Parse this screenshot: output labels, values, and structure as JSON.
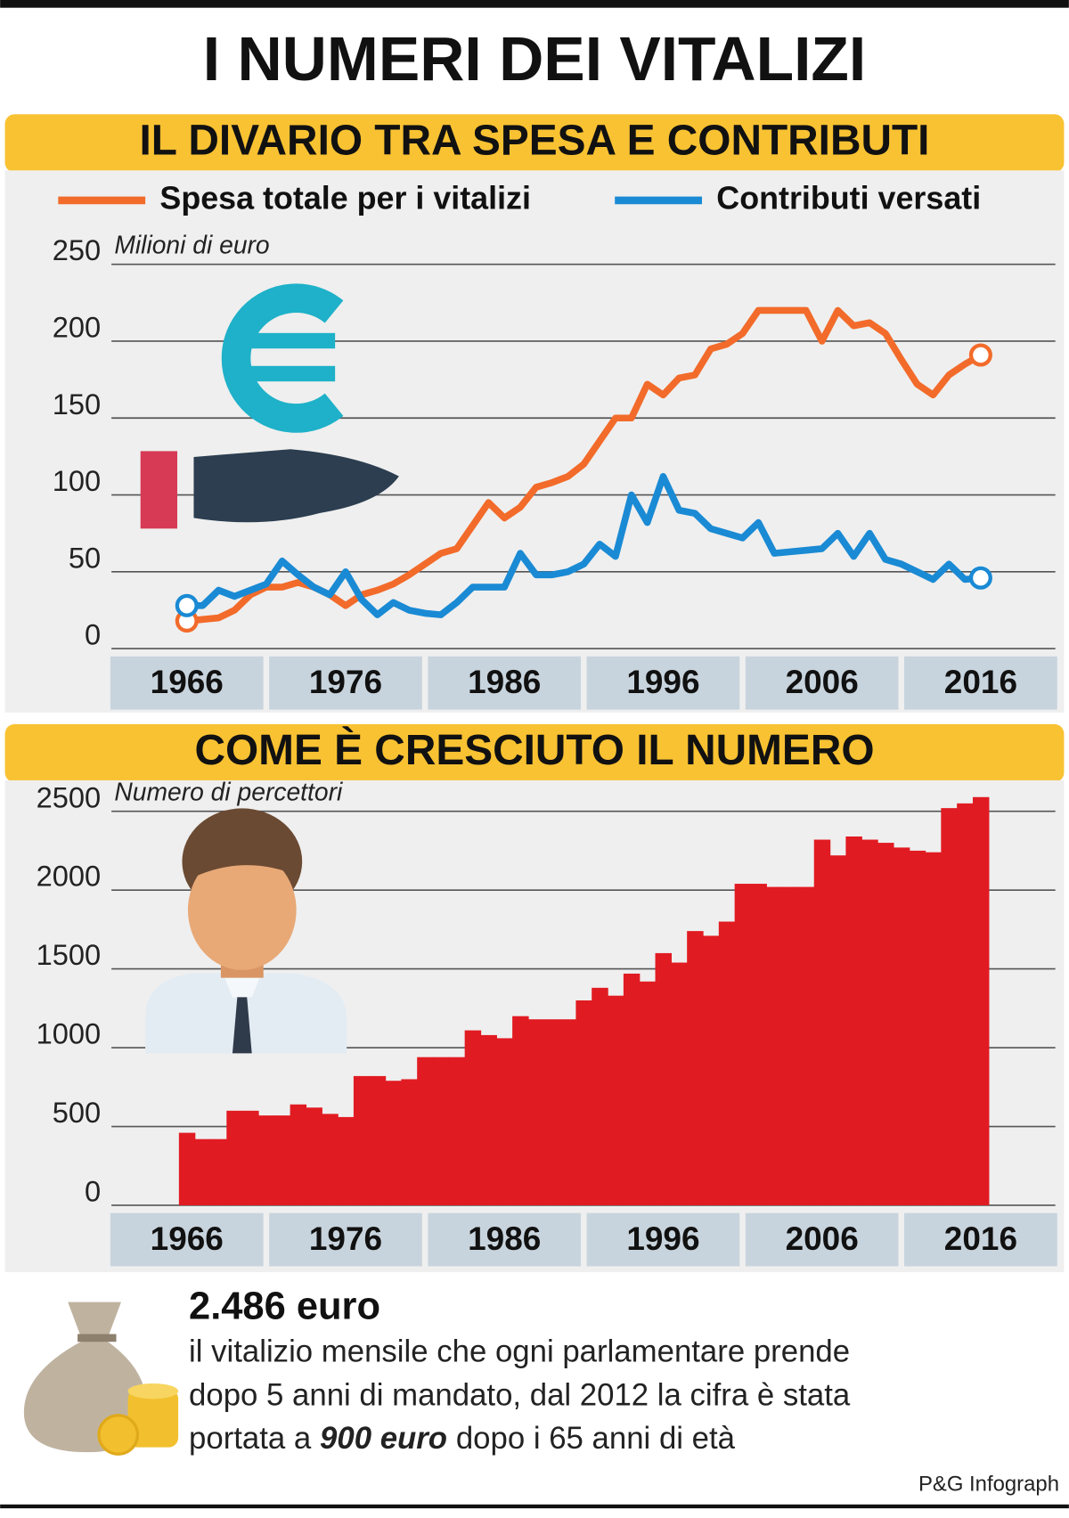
{
  "title": "I NUMERI DEI VITALIZI",
  "chart_data": [
    {
      "type": "line",
      "title": "IL DIVARIO TRA SPESA E CONTRIBUTI",
      "y_label": "Milioni di euro",
      "x": [
        1966,
        1967,
        1968,
        1969,
        1970,
        1971,
        1972,
        1973,
        1974,
        1975,
        1976,
        1977,
        1978,
        1979,
        1980,
        1981,
        1982,
        1983,
        1984,
        1985,
        1986,
        1987,
        1988,
        1989,
        1990,
        1991,
        1992,
        1993,
        1994,
        1995,
        1996,
        1997,
        1998,
        1999,
        2000,
        2001,
        2002,
        2003,
        2004,
        2005,
        2006,
        2007,
        2008,
        2009,
        2010,
        2011,
        2012,
        2013,
        2014,
        2015,
        2016
      ],
      "xlim": [
        1961.25,
        2020.7
      ],
      "xticks": [
        1966,
        1976,
        1986,
        1996,
        2006,
        2016
      ],
      "ylim": [
        0,
        250
      ],
      "yticks": [
        0,
        50,
        100,
        150,
        200,
        250
      ],
      "grid": true,
      "legend": "top",
      "series": [
        {
          "name": "Spesa totale per i vitalizi",
          "color": "#f26b2a",
          "values": [
            18,
            19,
            20,
            25,
            35,
            40,
            40,
            43,
            40,
            35,
            28,
            35,
            38,
            42,
            48,
            55,
            62,
            65,
            80,
            95,
            85,
            92,
            105,
            108,
            112,
            120,
            135,
            150,
            150,
            172,
            165,
            176,
            178,
            195,
            198,
            205,
            220,
            220,
            220,
            220,
            200,
            220,
            210,
            212,
            205,
            188,
            172,
            165,
            178,
            185,
            191
          ]
        },
        {
          "name": "Contributi versati",
          "color": "#1a8ad4",
          "values": [
            28,
            28,
            38,
            34,
            38,
            42,
            57,
            48,
            40,
            35,
            50,
            32,
            22,
            30,
            25,
            23,
            22,
            30,
            40,
            40,
            40,
            62,
            48,
            48,
            50,
            55,
            68,
            60,
            100,
            82,
            112,
            90,
            88,
            78,
            75,
            72,
            82,
            62,
            63,
            64,
            65,
            75,
            60,
            75,
            58,
            55,
            50,
            45,
            55,
            45,
            46
          ]
        }
      ]
    },
    {
      "type": "bar",
      "title": "COME È CRESCIUTO IL NUMERO",
      "y_label": "Numero di percettori",
      "color": "#e11b22",
      "x": [
        1966,
        1967,
        1968,
        1969,
        1970,
        1971,
        1972,
        1973,
        1974,
        1975,
        1976,
        1977,
        1978,
        1979,
        1980,
        1981,
        1982,
        1983,
        1984,
        1985,
        1986,
        1987,
        1988,
        1989,
        1990,
        1991,
        1992,
        1993,
        1994,
        1995,
        1996,
        1997,
        1998,
        1999,
        2000,
        2001,
        2002,
        2003,
        2004,
        2005,
        2006,
        2007,
        2008,
        2009,
        2010,
        2011,
        2012,
        2013,
        2014,
        2015,
        2016
      ],
      "values": [
        460,
        420,
        420,
        600,
        600,
        570,
        570,
        640,
        620,
        580,
        560,
        820,
        820,
        790,
        800,
        940,
        940,
        940,
        1110,
        1080,
        1060,
        1200,
        1180,
        1180,
        1180,
        1300,
        1380,
        1330,
        1470,
        1420,
        1600,
        1540,
        1740,
        1710,
        1800,
        2040,
        2040,
        2020,
        2020,
        2020,
        2320,
        2220,
        2340,
        2320,
        2300,
        2270,
        2250,
        2240,
        2520,
        2550,
        2590
      ],
      "xlim": [
        1961.25,
        2020.7
      ],
      "xticks": [
        1966,
        1976,
        1986,
        1996,
        2006,
        2016
      ],
      "ylim": [
        0,
        2500
      ],
      "yticks": [
        0,
        500,
        1000,
        1500,
        2000,
        2500
      ],
      "grid": true
    }
  ],
  "footer": {
    "highlight": "2.486 euro",
    "lines": [
      "il vitalizio mensile che ogni parlamentare prende",
      "dopo 5 anni di mandato, dal 2012 la cifra è stata"
    ],
    "last_line": [
      "portata a",
      "900 euro",
      "dopo i 65 anni di età"
    ]
  },
  "source": "P&G Infograph"
}
